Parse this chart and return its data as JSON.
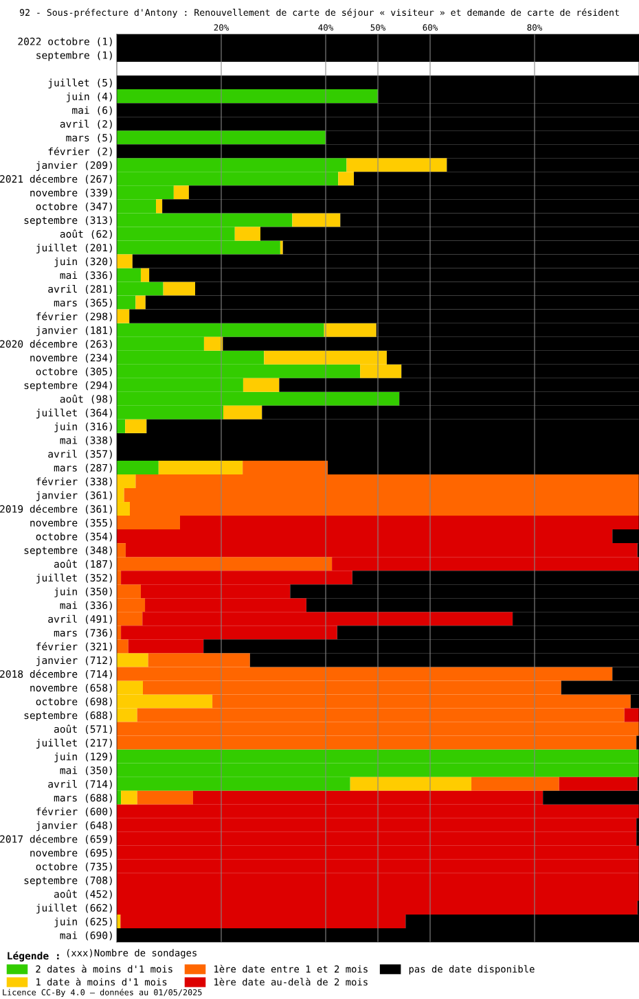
{
  "chart_data": {
    "type": "bar",
    "orientation": "horizontal",
    "stacked": true,
    "title": "92 - Sous-préfecture d'Antony : Renouvellement de carte de séjour « visiteur » et demande de carte de résident",
    "categories": [
      "2022 octobre (1)",
      "septembre (1)",
      null,
      "juillet (5)",
      "juin (4)",
      "mai (6)",
      "avril (2)",
      "mars (5)",
      "février (2)",
      "janvier (209)",
      "2021 décembre (267)",
      "novembre (339)",
      "octobre (347)",
      "septembre (313)",
      "août (62)",
      "juillet (201)",
      "juin (320)",
      "mai (336)",
      "avril (281)",
      "mars (365)",
      "février (298)",
      "janvier (181)",
      "2020 décembre (263)",
      "novembre (234)",
      "octobre (305)",
      "septembre (294)",
      "août (98)",
      "juillet (364)",
      "juin (316)",
      "mai (338)",
      "avril (357)",
      "mars (287)",
      "février (338)",
      "janvier (361)",
      "2019 décembre (361)",
      "novembre (355)",
      "octobre (354)",
      "septembre (348)",
      "août (187)",
      "juillet (352)",
      "juin (350)",
      "mai (336)",
      "avril (491)",
      "mars (736)",
      "février (321)",
      "janvier (712)",
      "2018 décembre (714)",
      "novembre (658)",
      "octobre (698)",
      "septembre (688)",
      "août (571)",
      "juillet (217)",
      "juin (129)",
      "mai (350)",
      "avril (714)",
      "mars (688)",
      "février (600)",
      "janvier (648)",
      "2017 décembre (659)",
      "novembre (695)",
      "octobre (735)",
      "septembre (708)",
      "août (452)",
      "juillet (662)",
      "juin (625)",
      "mai (690)"
    ],
    "series": [
      {
        "name": "2 dates à moins d'1 mois",
        "color": "#33cc00",
        "values": [
          0,
          0,
          null,
          0,
          50,
          0,
          0,
          40,
          0,
          44.0,
          42.4,
          10.9,
          7.5,
          33.6,
          22.6,
          31.3,
          0,
          4.6,
          8.9,
          3.6,
          0,
          39.7,
          16.7,
          28.2,
          46.6,
          24.2,
          54.1,
          20.4,
          1.6,
          0,
          0,
          8.0,
          0,
          0,
          0,
          0,
          0,
          0,
          0,
          0,
          0,
          0,
          0,
          0,
          0,
          0,
          0,
          0,
          0,
          0,
          0,
          0,
          100,
          100,
          44.7,
          0.8,
          0,
          0,
          0,
          0,
          0,
          0,
          0,
          0,
          0,
          0
        ]
      },
      {
        "name": "1 date à moins d'1 mois",
        "color": "#ffcc00",
        "values": [
          0,
          0,
          null,
          0,
          0,
          0,
          0,
          0,
          0,
          19.2,
          3.0,
          2.9,
          1.2,
          9.2,
          4.9,
          0.5,
          3.0,
          1.6,
          6.1,
          1.9,
          2.4,
          10.0,
          3.6,
          23.5,
          7.9,
          6.9,
          0,
          7.4,
          4.1,
          0,
          0,
          16.1,
          3.6,
          1.4,
          2.5,
          0,
          0,
          0,
          0,
          0,
          0,
          0,
          0,
          0,
          0,
          6.0,
          0,
          5.0,
          18.3,
          3.9,
          0,
          0,
          0,
          0,
          23.2,
          3.1,
          0,
          0,
          0,
          0,
          0,
          0,
          0,
          0,
          0.7,
          0
        ]
      },
      {
        "name": "1ère date entre 1 et 2 mois",
        "color": "#ff6600",
        "values": [
          0,
          0,
          null,
          0,
          0,
          0,
          0,
          0,
          0,
          0,
          0,
          0,
          0,
          0,
          0,
          0,
          0,
          0,
          0,
          0,
          0,
          0,
          0,
          0,
          0,
          0,
          0,
          0,
          0,
          0,
          0,
          16.3,
          96.4,
          98.6,
          97.5,
          12.1,
          0,
          1.7,
          41.2,
          0.8,
          4.6,
          5.4,
          4.9,
          0.8,
          2.2,
          19.5,
          94.9,
          80.1,
          80.1,
          93.3,
          100,
          99.5,
          0,
          0,
          16.8,
          10.7,
          0,
          0,
          0,
          0,
          0,
          0,
          0,
          0,
          0,
          0
        ]
      },
      {
        "name": "1ère date au-delà de 2 mois",
        "color": "#dd0000",
        "values": [
          0,
          0,
          null,
          0,
          0,
          0,
          0,
          0,
          0,
          0,
          0,
          0,
          0,
          0,
          0,
          0,
          0,
          0,
          0,
          0,
          0,
          0,
          0,
          0,
          0,
          0,
          0,
          0,
          0,
          0,
          0,
          0,
          0,
          0,
          0,
          87.9,
          94.9,
          98.0,
          58.8,
          44.3,
          28.6,
          30.9,
          70.9,
          41.4,
          14.4,
          0,
          0,
          0,
          0,
          2.8,
          0,
          0,
          0,
          0,
          15.0,
          67.0,
          100,
          99.5,
          99.5,
          100,
          100,
          100,
          100,
          99.7,
          54.6,
          0
        ]
      },
      {
        "name": "pas de date disponible",
        "color": "#000000",
        "values": [
          100,
          100,
          null,
          100,
          50,
          100,
          100,
          60,
          100,
          36.8,
          54.6,
          86.2,
          91.3,
          57.2,
          72.5,
          68.2,
          97.0,
          93.8,
          85.0,
          94.5,
          97.6,
          50.3,
          79.7,
          48.3,
          45.5,
          68.9,
          45.9,
          72.2,
          94.3,
          100,
          100,
          59.6,
          0,
          0,
          0,
          0,
          5.1,
          0.3,
          0,
          54.9,
          66.8,
          63.7,
          24.2,
          57.8,
          83.4,
          74.5,
          5.1,
          14.9,
          1.6,
          0,
          0,
          0.5,
          0,
          0,
          0.3,
          18.4,
          0,
          0.5,
          0.5,
          0,
          0,
          0,
          0,
          0.3,
          44.7,
          100
        ]
      }
    ],
    "xlim": [
      0,
      100
    ],
    "xticks": [
      {
        "value": 20,
        "label": "20%"
      },
      {
        "value": 40,
        "label": "40%"
      },
      {
        "value": 50,
        "label": "50%"
      },
      {
        "value": 60,
        "label": "60%"
      },
      {
        "value": 80,
        "label": "80%"
      }
    ],
    "grid": "x",
    "legend": "bottom",
    "legend_title": "Légende :",
    "annotations": [
      "(xxx)Nombre de sondages",
      "Licence CC-By 4.0 — données au 01/05/2025"
    ]
  }
}
